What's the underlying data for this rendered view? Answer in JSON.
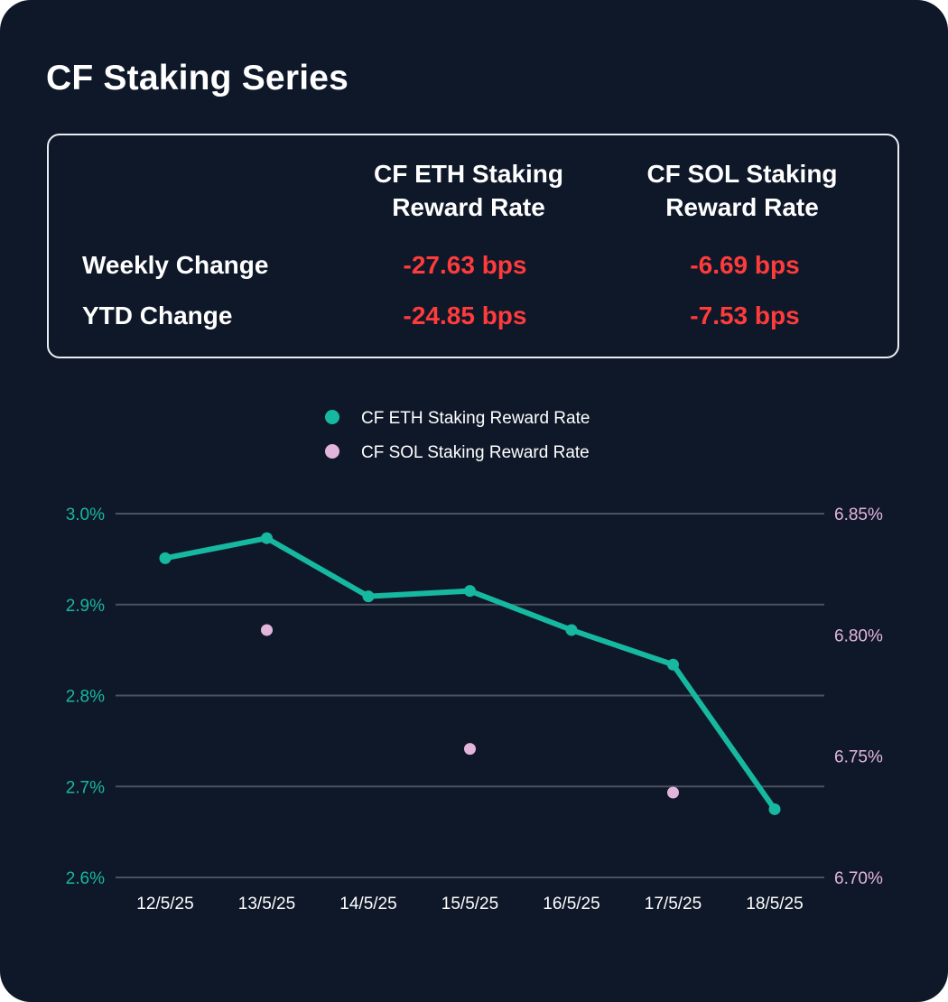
{
  "title": "CF Staking Series",
  "summary": {
    "columns": [
      {
        "line1": "CF ETH Staking",
        "line2": "Reward Rate"
      },
      {
        "line1": "CF SOL Staking",
        "line2": "Reward Rate"
      }
    ],
    "rows": [
      {
        "label": "Weekly Change",
        "eth": "-27.63 bps",
        "sol": "-6.69 bps"
      },
      {
        "label": "YTD Change",
        "eth": "-24.85 bps",
        "sol": "-7.53 bps"
      }
    ]
  },
  "colors": {
    "background": "#0f1829",
    "eth": "#17b8a0",
    "sol": "#e2b5dd",
    "negative": "#ff3b3b",
    "grid": "#4a525e",
    "text": "#ffffff"
  },
  "chart_data": {
    "type": "line",
    "categories": [
      "12/5/25",
      "13/5/25",
      "14/5/25",
      "15/5/25",
      "16/5/25",
      "17/5/25",
      "18/5/25"
    ],
    "series": [
      {
        "name": "CF ETH Staking Reward Rate",
        "axis": "left",
        "style": "line",
        "values": [
          2.951,
          2.973,
          2.909,
          2.915,
          2.872,
          2.834,
          2.675
        ]
      },
      {
        "name": "CF SOL Staking Reward Rate",
        "axis": "right",
        "style": "points",
        "values": [
          null,
          6.802,
          null,
          6.753,
          null,
          6.735,
          null
        ]
      }
    ],
    "left_axis": {
      "ylim": [
        2.6,
        3.0
      ],
      "ticks": [
        3.0,
        2.9,
        2.8,
        2.7,
        2.6
      ],
      "tick_labels": [
        "3.0%",
        "2.9%",
        "2.8%",
        "2.7%",
        "2.6%"
      ]
    },
    "right_axis": {
      "ylim": [
        6.7,
        6.85
      ],
      "ticks": [
        6.85,
        6.8,
        6.75,
        6.7
      ],
      "tick_labels": [
        "6.85%",
        "6.80%",
        "6.75%",
        "6.70%"
      ]
    },
    "legend_position": "top-center",
    "grid": true
  }
}
